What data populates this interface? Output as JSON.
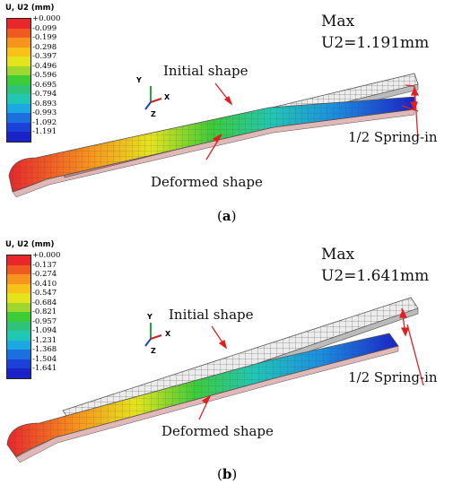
{
  "panel_a": {
    "legend_title": "U, U2 (mm)",
    "legend_values": [
      "+0.000",
      "-0.099",
      "-0.199",
      "-0.298",
      "-0.397",
      "-0.496",
      "-0.596",
      "-0.695",
      "-0.794",
      "-0.893",
      "-0.993",
      "-1.092",
      "-1.191"
    ],
    "legend_colors": [
      "#e8262c",
      "#ef5a22",
      "#f7941d",
      "#f8c21a",
      "#e4e41e",
      "#9fd630",
      "#3dcb38",
      "#2fc27a",
      "#22c6b4",
      "#1ca8e0",
      "#1d6fe0",
      "#1c40d8",
      "#1a22c8"
    ],
    "max_label": "Max",
    "max_value": "U2=1.191mm",
    "initial_label": "Initial shape",
    "deformed_label": "Deformed shape",
    "springin_label": "1/2 Spring-in",
    "caption_pre": "(",
    "caption_letter": "a",
    "caption_post": ")",
    "axes": {
      "y": "Y",
      "x": "X",
      "z": "Z"
    }
  },
  "panel_b": {
    "legend_title": "U, U2 (mm)",
    "legend_values": [
      "+0.000",
      "-0.137",
      "-0.274",
      "-0.410",
      "-0.547",
      "-0.684",
      "-0.821",
      "-0.957",
      "-1.094",
      "-1.231",
      "-1.368",
      "-1.504",
      "-1.641"
    ],
    "legend_colors": [
      "#e8262c",
      "#ef5a22",
      "#f7941d",
      "#f8c21a",
      "#e4e41e",
      "#9fd630",
      "#3dcb38",
      "#2fc27a",
      "#22c6b4",
      "#1ca8e0",
      "#1d6fe0",
      "#1c40d8",
      "#1a22c8"
    ],
    "max_label": "Max",
    "max_value": "U2=1.641mm",
    "initial_label": "Initial shape",
    "deformed_label": "Deformed shape",
    "springin_label": "1/2 Spring-in",
    "caption_pre": "(",
    "caption_letter": "b",
    "caption_post": ")",
    "axes": {
      "y": "Y",
      "x": "X",
      "z": "Z"
    }
  }
}
